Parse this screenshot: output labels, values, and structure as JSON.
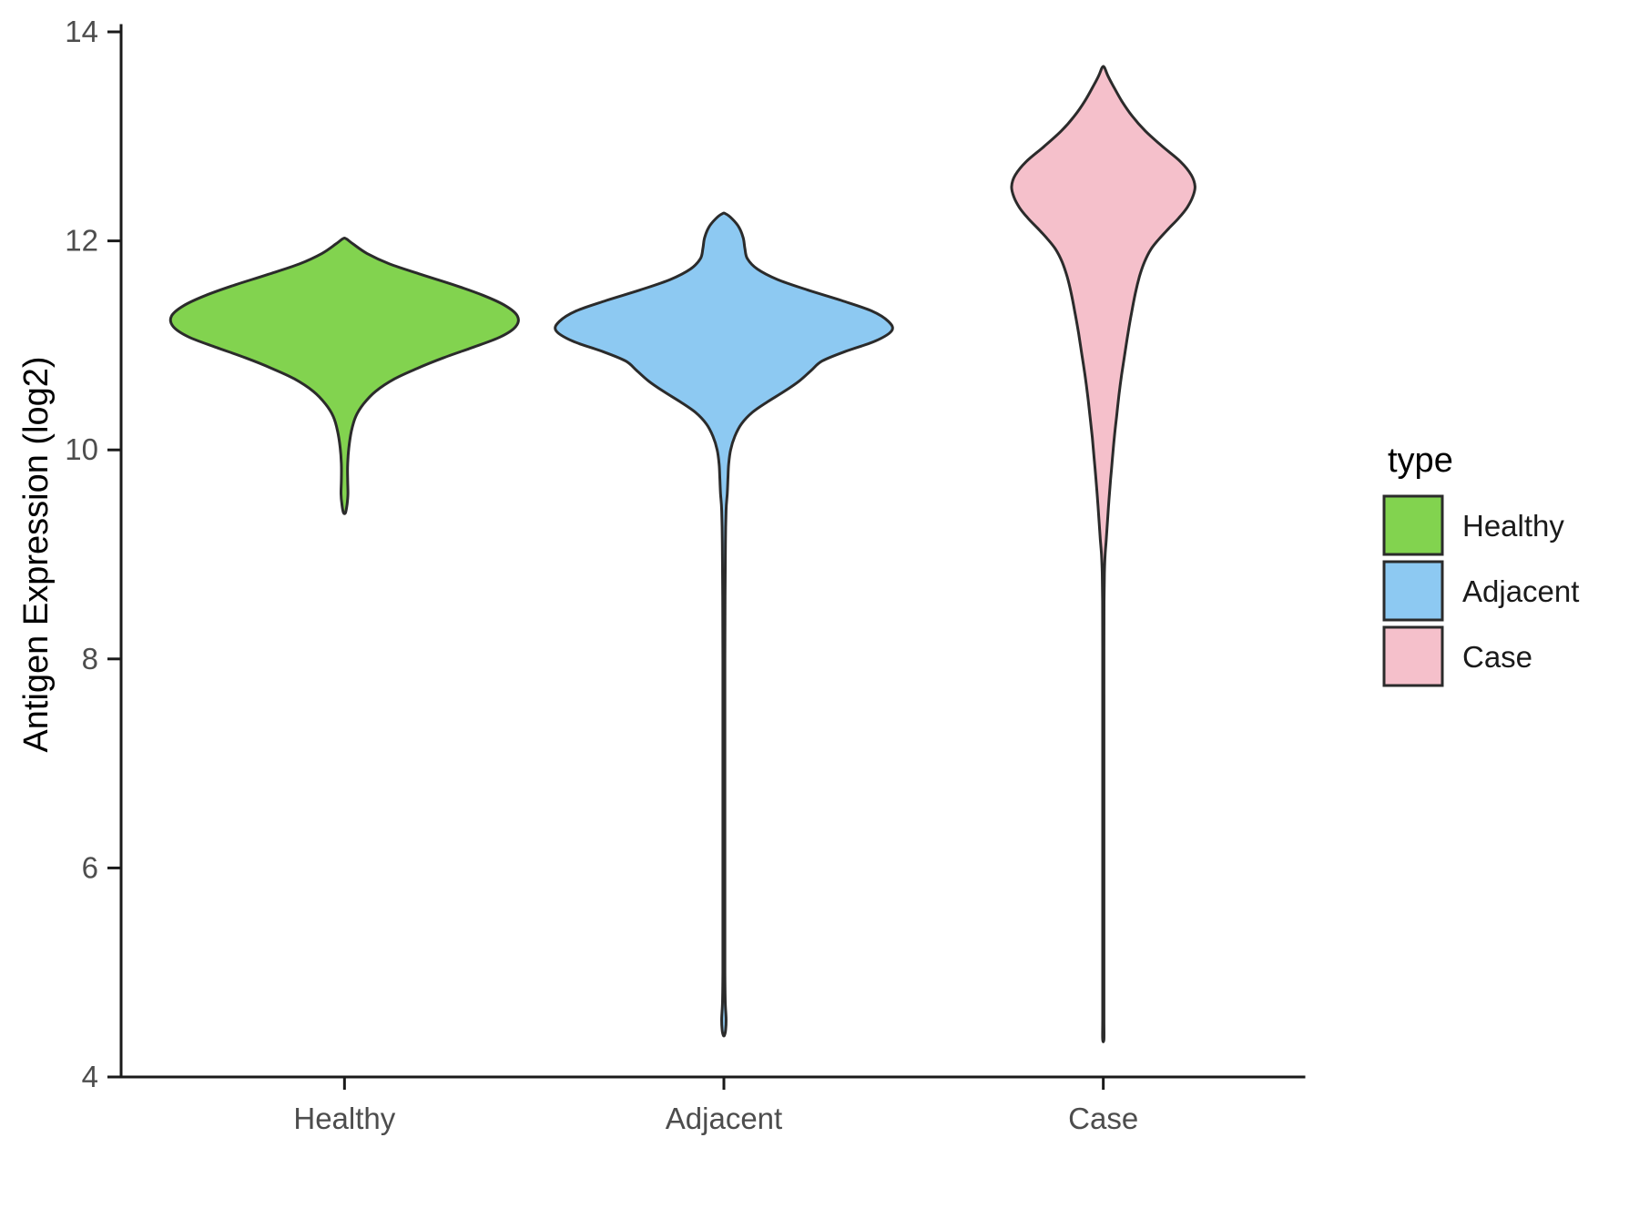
{
  "figure": {
    "background": "#FFFFFF",
    "legend": {
      "title": "type",
      "entries": [
        {
          "label": "Healthy",
          "color": "#82D34F"
        },
        {
          "label": "Adjacent",
          "color": "#8DC9F2"
        },
        {
          "label": "Case",
          "color": "#F5C0CB"
        }
      ]
    }
  },
  "chart_data": {
    "type": "violin",
    "title": "",
    "xlabel": "",
    "ylabel": "Antigen Expression (log2)",
    "ylim": [
      4,
      14
    ],
    "y_ticks": [
      4,
      6,
      8,
      10,
      12,
      14
    ],
    "categories": [
      "Healthy",
      "Adjacent",
      "Case"
    ],
    "grid": false,
    "legend_position": "right",
    "axis_color": "#1a1a1a",
    "tick_label_color": "#4d4d4d",
    "series": [
      {
        "name": "Healthy",
        "fill": "#82D34F",
        "outline": "#2B2B2B",
        "range": [
          9.4,
          12.02
        ],
        "relative_max_width": 1.0,
        "profile": [
          [
            12.02,
            0.01
          ],
          [
            11.97,
            0.05
          ],
          [
            11.88,
            0.13
          ],
          [
            11.78,
            0.26
          ],
          [
            11.68,
            0.44
          ],
          [
            11.58,
            0.63
          ],
          [
            11.48,
            0.8
          ],
          [
            11.38,
            0.93
          ],
          [
            11.28,
            1.0
          ],
          [
            11.18,
            0.99
          ],
          [
            11.08,
            0.9
          ],
          [
            10.98,
            0.74
          ],
          [
            10.88,
            0.57
          ],
          [
            10.78,
            0.42
          ],
          [
            10.68,
            0.29
          ],
          [
            10.56,
            0.18
          ],
          [
            10.44,
            0.11
          ],
          [
            10.32,
            0.065
          ],
          [
            10.18,
            0.04
          ],
          [
            10.02,
            0.025
          ],
          [
            9.86,
            0.018
          ],
          [
            9.72,
            0.018
          ],
          [
            9.58,
            0.02
          ],
          [
            9.48,
            0.015
          ],
          [
            9.4,
            0.006
          ]
        ]
      },
      {
        "name": "Adjacent",
        "fill": "#8DC9F2",
        "outline": "#2B2B2B",
        "range": [
          4.4,
          12.26
        ],
        "relative_max_width": 0.97,
        "profile": [
          [
            12.26,
            0.01
          ],
          [
            12.21,
            0.05
          ],
          [
            12.13,
            0.09
          ],
          [
            12.03,
            0.115
          ],
          [
            11.93,
            0.125
          ],
          [
            11.83,
            0.14
          ],
          [
            11.73,
            0.2
          ],
          [
            11.63,
            0.32
          ],
          [
            11.53,
            0.5
          ],
          [
            11.43,
            0.7
          ],
          [
            11.33,
            0.88
          ],
          [
            11.23,
            0.98
          ],
          [
            11.14,
            1.0
          ],
          [
            11.04,
            0.9
          ],
          [
            10.94,
            0.72
          ],
          [
            10.85,
            0.585
          ],
          [
            10.76,
            0.52
          ],
          [
            10.66,
            0.45
          ],
          [
            10.56,
            0.36
          ],
          [
            10.46,
            0.26
          ],
          [
            10.36,
            0.17
          ],
          [
            10.25,
            0.105
          ],
          [
            10.13,
            0.065
          ],
          [
            10.0,
            0.04
          ],
          [
            9.86,
            0.028
          ],
          [
            9.72,
            0.024
          ],
          [
            9.58,
            0.02
          ],
          [
            9.42,
            0.013
          ],
          [
            9.1,
            0.009
          ],
          [
            8.6,
            0.007
          ],
          [
            8.0,
            0.006
          ],
          [
            7.2,
            0.006
          ],
          [
            6.4,
            0.006
          ],
          [
            5.6,
            0.006
          ],
          [
            5.0,
            0.006
          ],
          [
            4.72,
            0.008
          ],
          [
            4.56,
            0.013
          ],
          [
            4.46,
            0.011
          ],
          [
            4.4,
            0.004
          ]
        ]
      },
      {
        "name": "Case",
        "fill": "#F5C0CB",
        "outline": "#2B2B2B",
        "range": [
          4.36,
          13.66
        ],
        "relative_max_width": 0.53,
        "profile": [
          [
            13.66,
            0.012
          ],
          [
            13.58,
            0.05
          ],
          [
            13.48,
            0.11
          ],
          [
            13.34,
            0.2
          ],
          [
            13.2,
            0.31
          ],
          [
            13.05,
            0.46
          ],
          [
            12.9,
            0.65
          ],
          [
            12.76,
            0.84
          ],
          [
            12.63,
            0.96
          ],
          [
            12.52,
            1.0
          ],
          [
            12.42,
            0.975
          ],
          [
            12.32,
            0.915
          ],
          [
            12.22,
            0.825
          ],
          [
            12.12,
            0.715
          ],
          [
            12.02,
            0.61
          ],
          [
            11.92,
            0.52
          ],
          [
            11.8,
            0.45
          ],
          [
            11.66,
            0.395
          ],
          [
            11.5,
            0.35
          ],
          [
            11.32,
            0.31
          ],
          [
            11.12,
            0.27
          ],
          [
            10.92,
            0.235
          ],
          [
            10.72,
            0.2
          ],
          [
            10.52,
            0.17
          ],
          [
            10.32,
            0.145
          ],
          [
            10.12,
            0.12
          ],
          [
            9.92,
            0.1
          ],
          [
            9.72,
            0.08
          ],
          [
            9.52,
            0.062
          ],
          [
            9.32,
            0.046
          ],
          [
            9.14,
            0.032
          ],
          [
            9.0,
            0.02
          ],
          [
            8.82,
            0.012
          ],
          [
            8.55,
            0.008
          ],
          [
            8.1,
            0.006
          ],
          [
            7.4,
            0.005
          ],
          [
            6.6,
            0.005
          ],
          [
            5.8,
            0.005
          ],
          [
            5.0,
            0.005
          ],
          [
            4.55,
            0.005
          ],
          [
            4.36,
            0.003
          ]
        ]
      }
    ]
  }
}
